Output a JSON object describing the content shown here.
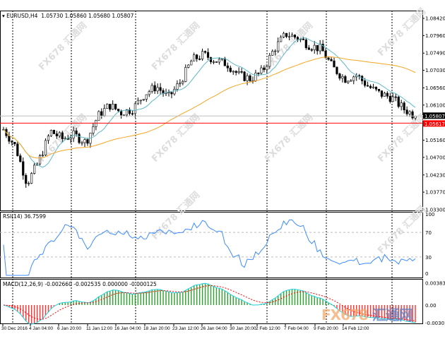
{
  "header": {
    "symbol": "EURUSD,H4",
    "open": "1.05730",
    "high": "1.05860",
    "low": "1.05680",
    "close": "1.05807"
  },
  "rsi": {
    "label": "RSI(14)",
    "value": "36.7599",
    "levels": [
      "100",
      "70",
      "30",
      "0"
    ]
  },
  "macd": {
    "label": "MACD(12,26,9)",
    "values": "-0.002660 -0.002535 0.000000 -0.000125",
    "axis": [
      "0.003836",
      "0.00",
      "-0.00301"
    ]
  },
  "watermark": "FX678 汇通网",
  "logo": {
    "a": "FX678",
    "b": "汇通网"
  },
  "colors": {
    "bid": "#c0c0c0",
    "ask": "#ff0000",
    "fast_ma": "#5fb8c8",
    "slow_ma": "#f5a623",
    "rsi": "#3c8cff",
    "macd_up": "#2ca02c",
    "macd_down": "#ff3030"
  },
  "price_labels": {
    "current": "1.05807",
    "line": "1.05617"
  },
  "chart_data": {
    "type": "candlestick",
    "title": "EURUSD,H4",
    "ylim": [
      1.033,
      1.0842
    ],
    "y_ticks": [
      "1.08420",
      "1.07960",
      "1.07490",
      "1.07030",
      "1.06560",
      "1.06100",
      "1.05160",
      "1.04700",
      "1.04230",
      "1.03770",
      "1.03300"
    ],
    "x_ticks": [
      "30 Dec 2016",
      "4 Jan 04:00",
      "6 Jan 20:00",
      "11 Jan 12:00",
      "16 Jan 04:00",
      "18 Jan 20:00",
      "23 Jan 12:00",
      "26 Jan 04:00",
      "30 Jan 20:00",
      "2 Feb 12:00",
      "7 Feb 04:00",
      "9 Feb 20:00",
      "14 Feb 12:00"
    ],
    "close_path": [
      1.0545,
      1.05,
      1.04,
      1.046,
      1.054,
      1.052,
      1.053,
      1.051,
      1.058,
      1.061,
      1.059,
      1.06,
      1.064,
      1.066,
      1.063,
      1.067,
      1.073,
      1.0745,
      1.073,
      1.072,
      1.069,
      1.068,
      1.07,
      1.076,
      1.08,
      1.079,
      1.077,
      1.076,
      1.071,
      1.068,
      1.069,
      1.066,
      1.064,
      1.063,
      1.06,
      1.0581
    ]
  }
}
